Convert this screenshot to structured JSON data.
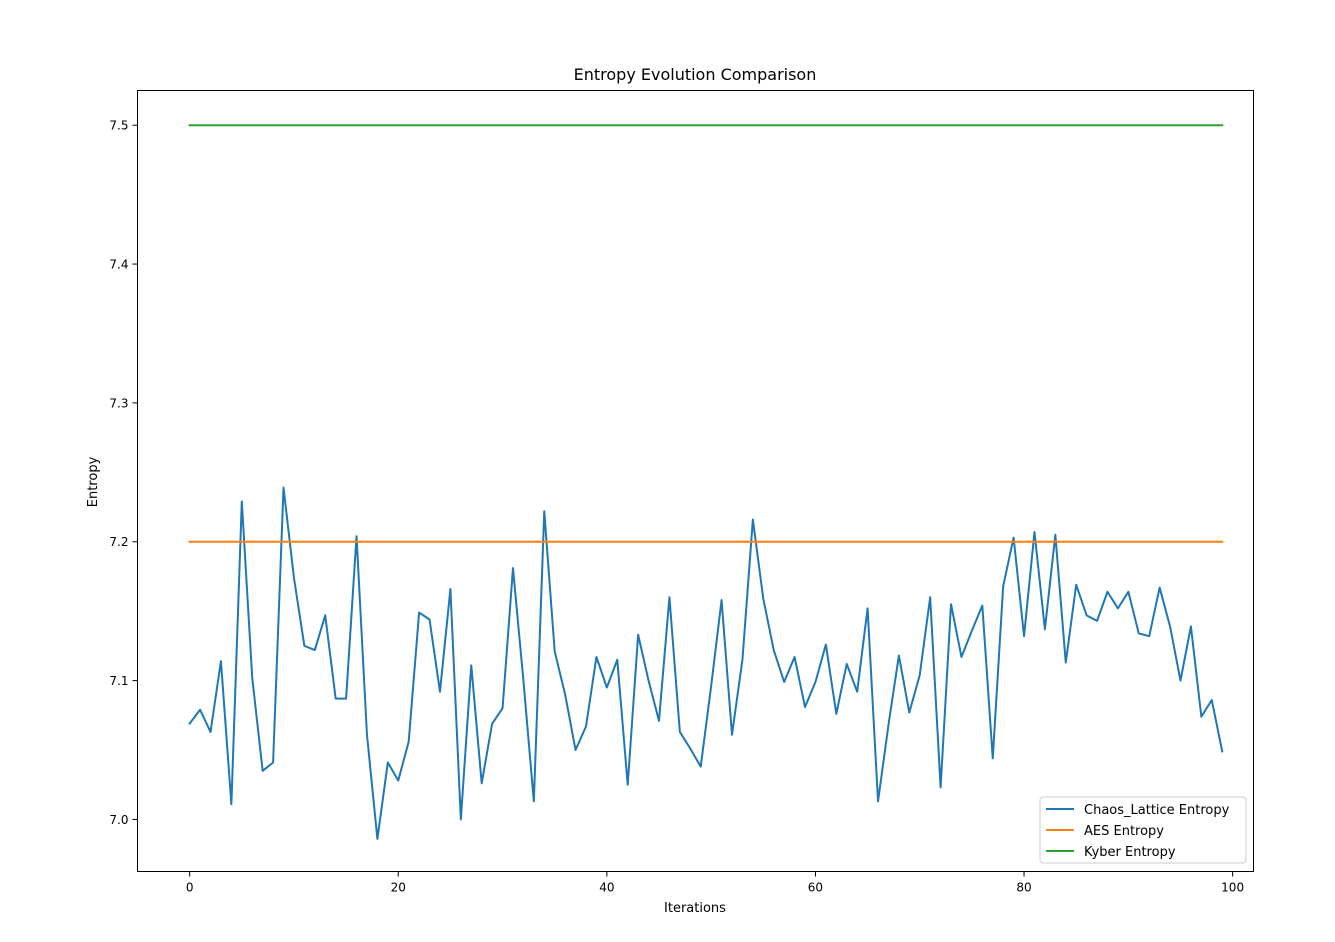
{
  "chart_data": {
    "type": "line",
    "title": "Entropy Evolution Comparison",
    "xlabel": "Iterations",
    "ylabel": "Entropy",
    "xlim": [
      -5,
      102
    ],
    "ylim": [
      6.9625,
      7.525
    ],
    "xticks": [
      0,
      20,
      40,
      60,
      80,
      100
    ],
    "xtick_labels": [
      "0",
      "20",
      "40",
      "60",
      "80",
      "100"
    ],
    "yticks": [
      7.0,
      7.1,
      7.2,
      7.3,
      7.4,
      7.5
    ],
    "ytick_labels": [
      "7.0",
      "7.1",
      "7.2",
      "7.3",
      "7.4",
      "7.5"
    ],
    "grid": false,
    "legend_position": "lower-right",
    "series": [
      {
        "name": "Chaos_Lattice Entropy",
        "color": "#1f77b4",
        "x": [
          0,
          1,
          2,
          3,
          4,
          5,
          6,
          7,
          8,
          9,
          10,
          11,
          12,
          13,
          14,
          15,
          16,
          17,
          18,
          19,
          20,
          21,
          22,
          23,
          24,
          25,
          26,
          27,
          28,
          29,
          30,
          31,
          32,
          33,
          34,
          35,
          36,
          37,
          38,
          39,
          40,
          41,
          42,
          43,
          44,
          45,
          46,
          47,
          48,
          49,
          50,
          51,
          52,
          53,
          54,
          55,
          56,
          57,
          58,
          59,
          60,
          61,
          62,
          63,
          64,
          65,
          66,
          67,
          68,
          69,
          70,
          71,
          72,
          73,
          74,
          75,
          76,
          77,
          78,
          79,
          80,
          81,
          82,
          83,
          84,
          85,
          86,
          87,
          88,
          89,
          90,
          91,
          92,
          93,
          94,
          95,
          96,
          97,
          98,
          99
        ],
        "values": [
          7.069,
          7.079,
          7.063,
          7.114,
          7.011,
          7.229,
          7.102,
          7.035,
          7.041,
          7.239,
          7.174,
          7.125,
          7.122,
          7.147,
          7.087,
          7.087,
          7.204,
          7.061,
          6.986,
          7.041,
          7.028,
          7.056,
          7.149,
          7.144,
          7.092,
          7.166,
          7.0,
          7.111,
          7.026,
          7.069,
          7.08,
          7.181,
          7.1,
          7.013,
          7.222,
          7.121,
          7.09,
          7.05,
          7.067,
          7.117,
          7.095,
          7.115,
          7.025,
          7.133,
          7.1,
          7.071,
          7.16,
          7.063,
          7.051,
          7.038,
          7.096,
          7.158,
          7.061,
          7.115,
          7.216,
          7.159,
          7.122,
          7.099,
          7.117,
          7.081,
          7.099,
          7.126,
          7.076,
          7.112,
          7.092,
          7.152,
          7.013,
          7.068,
          7.118,
          7.077,
          7.104,
          7.16,
          7.023,
          7.155,
          7.117,
          7.136,
          7.154,
          7.044,
          7.168,
          7.203,
          7.132,
          7.207,
          7.137,
          7.205,
          7.113,
          7.169,
          7.147,
          7.143,
          7.164,
          7.152,
          7.164,
          7.134,
          7.132,
          7.167,
          7.139,
          7.1,
          7.139,
          7.074,
          7.086,
          7.049
        ]
      },
      {
        "name": "AES Entropy",
        "color": "#ff7f0e",
        "x": [
          0,
          99
        ],
        "values": [
          7.2,
          7.2
        ]
      },
      {
        "name": "Kyber Entropy",
        "color": "#2ca02c",
        "x": [
          0,
          99
        ],
        "values": [
          7.5,
          7.5
        ]
      }
    ]
  }
}
